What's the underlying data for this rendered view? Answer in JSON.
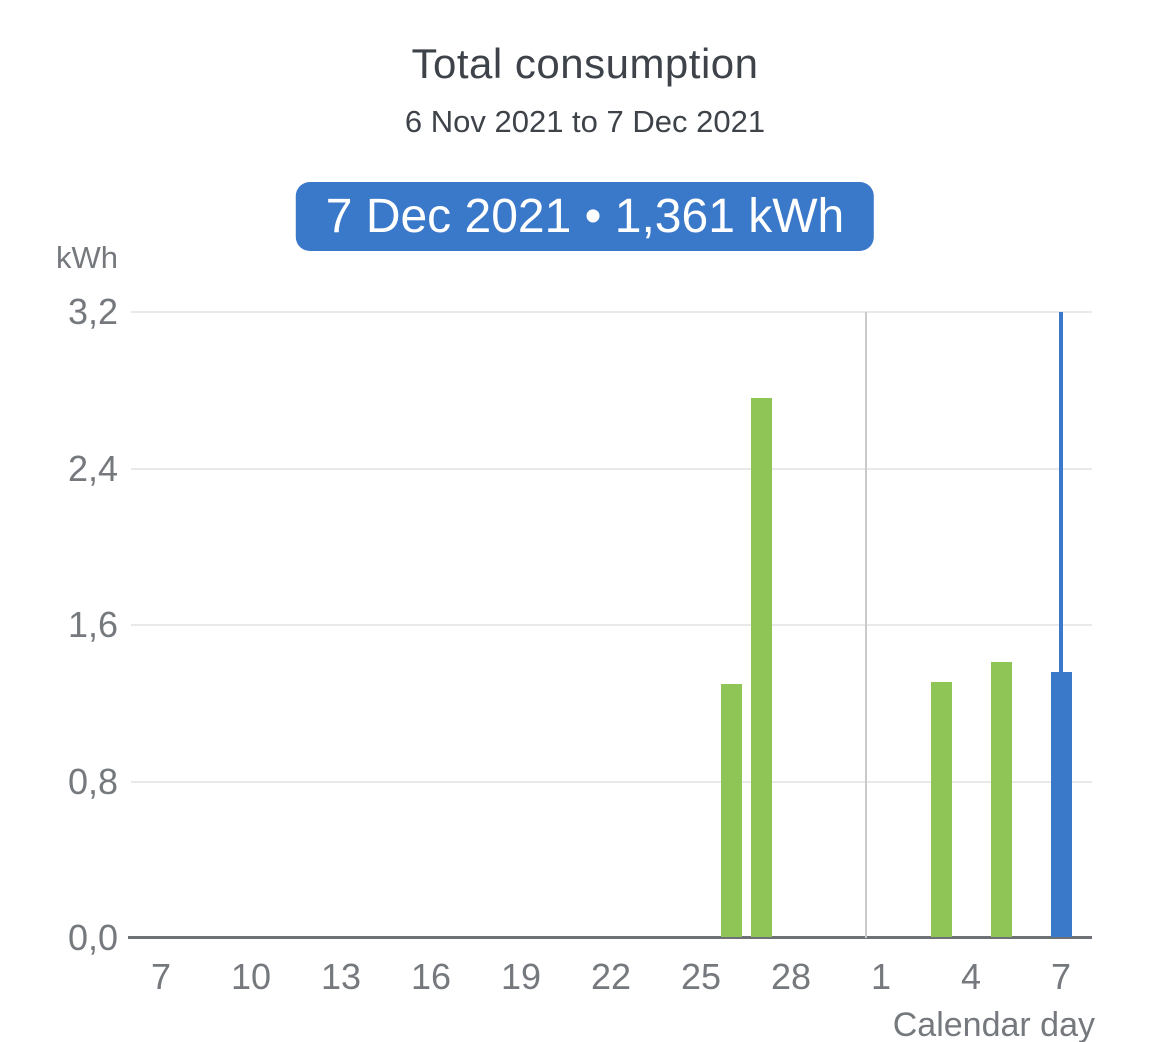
{
  "chart_data": {
    "type": "bar",
    "title": "Total consumption",
    "subtitle": "6 Nov 2021 to 7 Dec 2021",
    "selection_label": "7 Dec 2021 • 1,361 kWh",
    "ylabel": "kWh",
    "xlabel": "Calendar day",
    "ylim": [
      0,
      3.2
    ],
    "grid": true,
    "yticks": [
      {
        "value": 0.0,
        "label": "0,0"
      },
      {
        "value": 0.8,
        "label": "0,8"
      },
      {
        "value": 1.6,
        "label": "1,6"
      },
      {
        "value": 2.4,
        "label": "2,4"
      },
      {
        "value": 3.2,
        "label": "3,2"
      }
    ],
    "x_axis": {
      "first_day": "6 Nov 2021",
      "last_day": "7 Dec 2021",
      "ticks": [
        {
          "label": "7",
          "day": 1
        },
        {
          "label": "10",
          "day": 4
        },
        {
          "label": "13",
          "day": 7
        },
        {
          "label": "16",
          "day": 10
        },
        {
          "label": "19",
          "day": 13
        },
        {
          "label": "22",
          "day": 16
        },
        {
          "label": "25",
          "day": 19
        },
        {
          "label": "28",
          "day": 22
        },
        {
          "label": "1",
          "day": 25
        },
        {
          "label": "4",
          "day": 28
        },
        {
          "label": "7",
          "day": 31
        }
      ],
      "month_separator_day": 24.5
    },
    "bars": [
      {
        "date": "26 Nov 2021",
        "day": 20,
        "value": 1.3,
        "selected": false
      },
      {
        "date": "27 Nov 2021",
        "day": 21,
        "value": 2.76,
        "selected": false
      },
      {
        "date": "3 Dec 2021",
        "day": 27,
        "value": 1.31,
        "selected": false
      },
      {
        "date": "5 Dec 2021",
        "day": 29,
        "value": 1.41,
        "selected": false
      },
      {
        "date": "7 Dec 2021",
        "day": 31,
        "value": 1.361,
        "selected": true
      }
    ],
    "selected_bar": {
      "date": "7 Dec 2021",
      "value_kwh": "1,361"
    },
    "colors": {
      "bar_green": "#8fc457",
      "bar_selected_blue": "#3a78c9",
      "badge_blue": "#3a78c9",
      "selection_line_blue": "#3a78c9",
      "gridline": "#e8e9ea",
      "axis_line": "#6e7276",
      "month_separator": "#c9cacb",
      "label_gray": "#75797e",
      "title_gray": "#3e434a",
      "badge_text": "#ffffff"
    }
  }
}
